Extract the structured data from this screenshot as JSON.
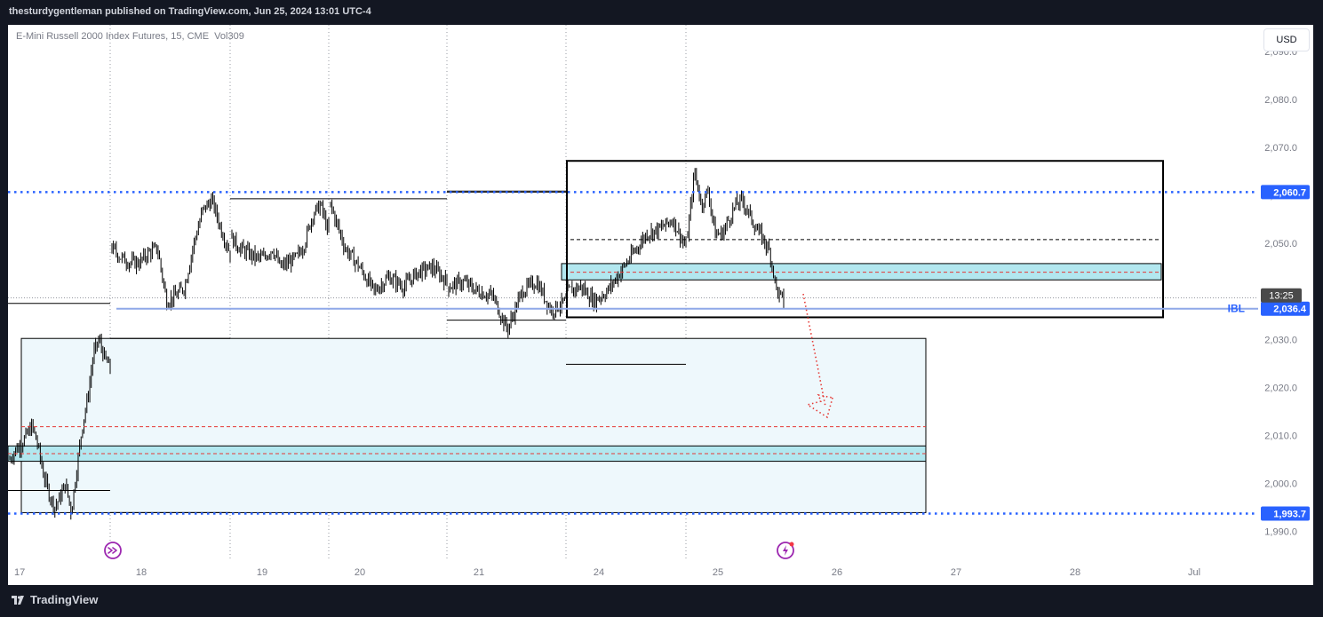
{
  "header": {
    "publish_line": "thesturdygentleman published on TradingView.com, Jun 25, 2024 13:01 UTC-4"
  },
  "footer": {
    "brand": "TradingView"
  },
  "legend": {
    "symbol": "E-Mini Russell 2000 Index Futures, 15, CME",
    "volume_label": "Vol",
    "volume_value": "309"
  },
  "toolbar": {
    "currency_label": "USD"
  },
  "colors": {
    "background": "#ffffff",
    "frame": "#131722",
    "candles": "#000000",
    "level_line": "#2962ff",
    "ibl_line": "#8fa8e8",
    "zone_fill": "#b2e7ef",
    "big_zone_fill": "#eef8fc",
    "red_dash": "#e53935",
    "label_bg": "#2962ff",
    "time_label_bg": "#4a4a4a",
    "icon_purple": "#9c27b0"
  },
  "chart_data": {
    "type": "candlestick",
    "title": "E-Mini Russell 2000 Index Futures, 15, CME",
    "currency": "USD",
    "y_axis": {
      "ylim": [
        1987.5,
        2098.5
      ],
      "ticks": [
        1990.0,
        2000.0,
        2010.0,
        2020.0,
        2030.0,
        2040.0,
        2050.0,
        2060.0,
        2070.0,
        2080.0,
        2090.0
      ],
      "tick_labels": [
        "1,990.0",
        "2,000.0",
        "2,010.0",
        "2,020.0",
        "2,030.0",
        "2,040.0",
        "2,050.0",
        "2,060.0",
        "2,070.0",
        "2,080.0",
        "2,090.0"
      ]
    },
    "x_axis": {
      "ticks": [
        "17",
        "18",
        "19",
        "20",
        "21",
        "24",
        "25",
        "26",
        "27",
        "28",
        "Jul"
      ],
      "dated_ticks": [
        "Jun 17",
        "Jun 18",
        "Jun 19",
        "Jun 20",
        "Jun 21",
        "Jun 24",
        "Jun 25",
        "Jun 26",
        "Jun 27",
        "Jun 28",
        "Jul 1"
      ]
    },
    "price_path": {
      "description_index": "approximate 15-minute close path, by session",
      "sessions": [
        {
          "day": "Jun 17",
          "closes": [
            2005,
            2007,
            2008,
            2010,
            2012,
            2008,
            2002,
            1998,
            1995,
            1997,
            2000,
            1994,
            2003,
            2012,
            2018,
            2027,
            2030,
            2026,
            2024
          ]
        },
        {
          "day": "Jun 18",
          "closes": [
            2049,
            2047,
            2046,
            2046,
            2048,
            2049,
            2038,
            2039,
            2041,
            2050,
            2057,
            2059,
            2053,
            2048
          ]
        },
        {
          "day": "Jun 19",
          "closes": [
            2051,
            2049,
            2048,
            2047,
            2047,
            2049,
            2045,
            2046,
            2047,
            2050,
            2056,
            2058,
            2052
          ]
        },
        {
          "day": "Jun 20",
          "closes": [
            2058,
            2049,
            2045,
            2040,
            2043,
            2041,
            2044,
            2045,
            2042
          ]
        },
        {
          "day": "Jun 21",
          "closes": [
            2041,
            2042,
            2040,
            2039,
            2032,
            2040,
            2042,
            2036,
            2038
          ]
        },
        {
          "day": "Jun 24",
          "closes": [
            2040,
            2041,
            2038,
            2040,
            2044,
            2048,
            2052,
            2053,
            2055,
            2049
          ]
        },
        {
          "day": "Jun 25",
          "closes": [
            2052,
            2065,
            2058,
            2061,
            2052,
            2052,
            2055,
            2058,
            2059,
            2056,
            2053,
            2051,
            2048,
            2040,
            2038
          ]
        }
      ]
    },
    "levels": [
      {
        "name": "upper-dotted-level",
        "value": 2060.7,
        "label": "2,060.7",
        "style": "dotted",
        "color": "#2962ff"
      },
      {
        "name": "ibl-level",
        "value": 2036.4,
        "label": "2,036.4",
        "tag": "IBL",
        "style": "solid",
        "color": "#8fa8e8"
      },
      {
        "name": "lower-dotted-level",
        "value": 1993.7,
        "label": "1,993.7",
        "style": "dotted",
        "color": "#2962ff"
      }
    ],
    "current_time_label": "13:25",
    "zones": [
      {
        "name": "upper-box",
        "price_top": 2067.2,
        "price_bottom": 2034.6
      },
      {
        "name": "upper-teal-zone",
        "price_top": 2045.8,
        "price_bottom": 2042.4
      },
      {
        "name": "big-lower-box",
        "price_top": 2030.2,
        "price_bottom": 1993.9
      },
      {
        "name": "lower-teal-zone",
        "price_top": 2007.8,
        "price_bottom": 2004.6
      }
    ],
    "session_high_low_segments": [
      {
        "name": "d17-high",
        "price": 2037.5
      },
      {
        "name": "d17-low",
        "price": 1998.5
      },
      {
        "name": "d18-high",
        "price": 2030.2
      },
      {
        "name": "d18-low",
        "price": 1993.9
      },
      {
        "name": "d19-high",
        "price": 2059.3
      },
      {
        "name": "d19-low",
        "price": 2036.4
      },
      {
        "name": "d20-high",
        "price": 2060.7
      },
      {
        "name": "d20-low",
        "price": 2034.0
      },
      {
        "name": "d21-high",
        "price": 2060.9
      },
      {
        "name": "d21-low",
        "price": 2034.0
      },
      {
        "name": "d24-low",
        "price": 2024.8
      }
    ],
    "dashed_lines": [
      {
        "name": "upper-mid-dash",
        "price": 2050.8,
        "color": "#000000"
      },
      {
        "name": "upper-teal-mid-dash",
        "price": 2044.0,
        "color": "#e53935"
      },
      {
        "name": "lower-red-dash",
        "price": 2011.8,
        "color": "#e53935"
      },
      {
        "name": "lower-teal-mid-dash",
        "price": 2006.2,
        "color": "#e53935"
      }
    ],
    "projection_arrow": {
      "from_price": 2038.0,
      "to_price": 2016.0,
      "style": "dotted",
      "color": "#e53935"
    },
    "grid": true
  }
}
